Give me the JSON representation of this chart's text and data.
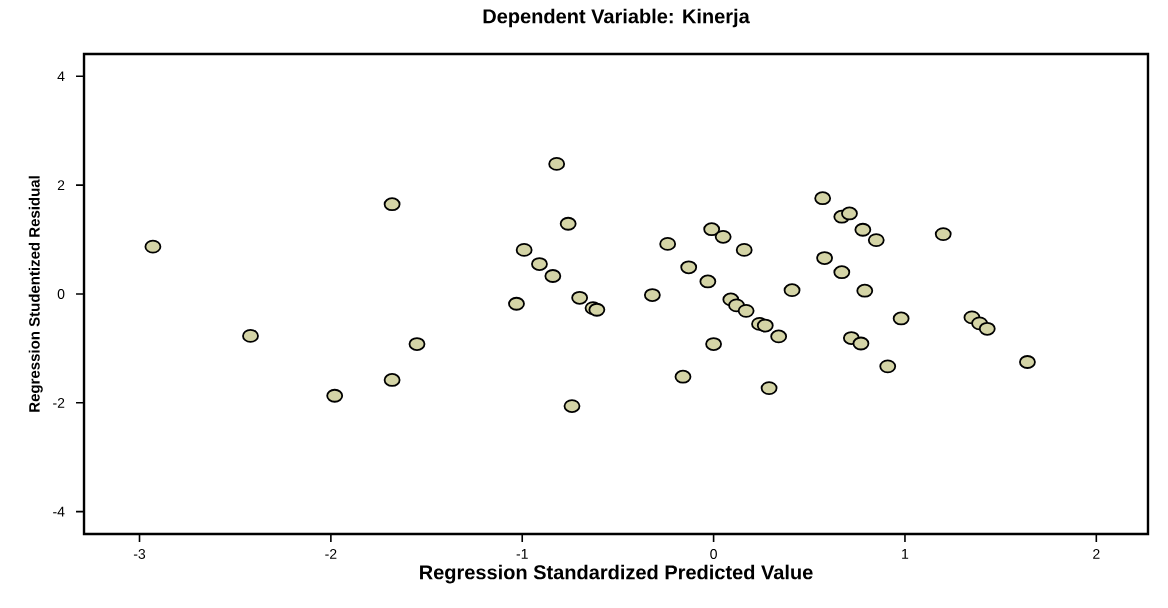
{
  "chart_data": {
    "type": "scatter",
    "title": "Dependent Variable: Kinerja",
    "xlabel": "Regression Standardized Predicted Value",
    "ylabel": "Regression Studentized Residual",
    "xlim": [
      -3.29,
      2.27
    ],
    "ylim": [
      -4.41,
      4.41
    ],
    "xticks": [
      -3,
      -2,
      -1,
      0,
      1,
      2
    ],
    "yticks": [
      -4,
      -2,
      0,
      2,
      4
    ],
    "grid": false,
    "marker": "circle",
    "series": [
      {
        "color": "#d4d4a6",
        "x": [
          -2.93,
          -2.42,
          -1.98,
          -1.68,
          -1.68,
          -1.55,
          -1.03,
          -0.99,
          -0.91,
          -0.84,
          -0.82,
          -0.76,
          -0.74,
          -0.7,
          -0.63,
          -0.61,
          -0.32,
          -0.24,
          -0.16,
          -0.13,
          -0.03,
          -0.01,
          0.0,
          0.05,
          0.09,
          0.12,
          0.17,
          0.16,
          0.24,
          0.27,
          0.29,
          0.34,
          0.41,
          0.57,
          0.58,
          0.67,
          0.71,
          0.67,
          0.72,
          0.77,
          0.78,
          0.79,
          0.85,
          0.91,
          0.98,
          1.2,
          1.35,
          1.39,
          1.43,
          1.64
        ],
        "values": [
          0.87,
          -0.77,
          -1.87,
          1.65,
          -1.58,
          -0.92,
          -0.18,
          0.81,
          0.55,
          0.33,
          2.39,
          1.29,
          -2.06,
          -0.07,
          -0.26,
          -0.29,
          -0.02,
          0.92,
          -1.52,
          0.49,
          0.23,
          1.19,
          -0.92,
          1.05,
          -0.1,
          -0.21,
          -0.31,
          0.81,
          -0.55,
          -0.58,
          -1.73,
          -0.78,
          0.07,
          1.76,
          0.66,
          1.42,
          1.48,
          0.4,
          -0.81,
          -0.91,
          1.18,
          0.06,
          0.99,
          -1.33,
          -0.45,
          1.1,
          -0.43,
          -0.54,
          -0.64,
          -1.25
        ]
      }
    ]
  }
}
